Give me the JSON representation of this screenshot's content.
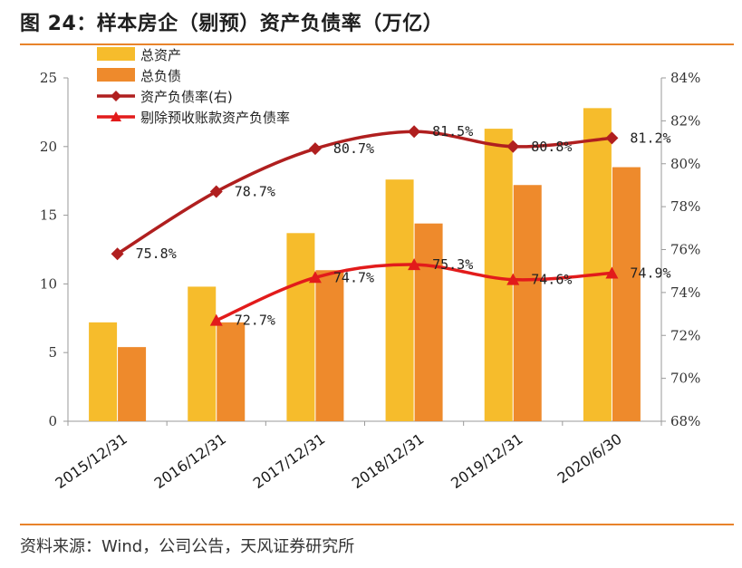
{
  "title": "图 24：样本房企（剔预）资产负债率（万亿）",
  "source": "资料来源：Wind，公司公告，天风证券研究所",
  "chart_data": {
    "type": "bar+line",
    "categories": [
      "2015/12/31",
      "2016/12/31",
      "2017/12/31",
      "2018/12/31",
      "2019/12/31",
      "2020/6/30"
    ],
    "left_axis": {
      "ylim": [
        0,
        25
      ],
      "ticks": [
        "0",
        "5",
        "10",
        "15",
        "20",
        "25"
      ]
    },
    "right_axis": {
      "ylim": [
        68,
        84
      ],
      "ticks": [
        "68%",
        "70%",
        "72%",
        "74%",
        "76%",
        "78%",
        "80%",
        "82%",
        "84%"
      ]
    },
    "series": [
      {
        "name": "总资产",
        "kind": "bar",
        "axis": "left",
        "color": "#f6bc2c",
        "values": [
          7.2,
          9.8,
          13.7,
          17.6,
          21.3,
          22.8
        ]
      },
      {
        "name": "总负债",
        "kind": "bar",
        "axis": "left",
        "color": "#ee8a2c",
        "values": [
          5.4,
          7.2,
          11.0,
          14.4,
          17.2,
          18.5
        ]
      },
      {
        "name": "资产负债率(右)",
        "kind": "line",
        "marker": "diamond",
        "axis": "right",
        "color": "#b01f1f",
        "values": [
          75.8,
          78.7,
          80.7,
          81.5,
          80.8,
          81.2
        ],
        "labels": [
          "75.8%",
          "78.7%",
          "80.7%",
          "81.5%",
          "80.8%",
          "81.2%"
        ]
      },
      {
        "name": "剔除预收账款资产负债率",
        "kind": "line",
        "marker": "triangle",
        "axis": "right",
        "color": "#e21b1b",
        "values": [
          null,
          72.7,
          74.7,
          75.3,
          74.6,
          74.9
        ],
        "labels": [
          null,
          "72.7%",
          "74.7%",
          "75.3%",
          "74.6%",
          "74.9%"
        ]
      }
    ],
    "legend_position": "top-left",
    "grid": false
  }
}
